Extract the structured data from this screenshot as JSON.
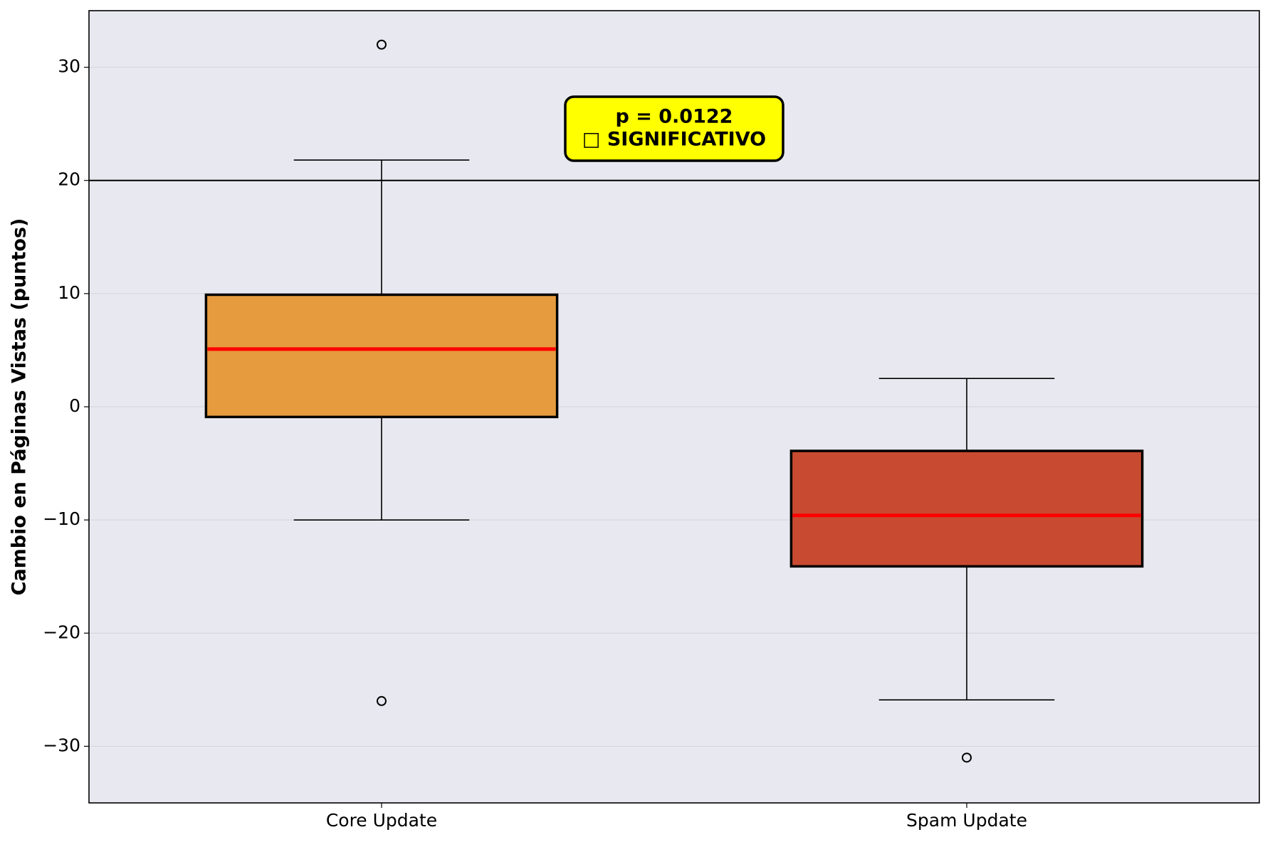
{
  "chart_data": {
    "type": "box",
    "ylabel": "Cambio en Páginas Vistas (puntos)",
    "categories": [
      "Core Update",
      "Spam Update"
    ],
    "colors": [
      "#e69b3e",
      "#c84b31"
    ],
    "median_color": "#ff0000",
    "boxes": [
      {
        "whislo": -10,
        "q1": -0.9,
        "med": 5.1,
        "q3": 9.9,
        "whishi": 21.8,
        "fliers": [
          32,
          -26
        ]
      },
      {
        "whislo": -25.9,
        "q1": -14.1,
        "med": -9.6,
        "q3": -3.9,
        "whishi": 2.5,
        "fliers": [
          -31
        ]
      }
    ],
    "hline": 20,
    "annotation": [
      "p = 0.0122",
      "□ SIGNIFICATIVO"
    ],
    "annotation_color": "#ffff00",
    "ylim": [
      -35,
      35
    ],
    "yticks": [
      {
        "value": -30,
        "label": "−30"
      },
      {
        "value": -20,
        "label": "−20"
      },
      {
        "value": -10,
        "label": "−10"
      },
      0,
      10,
      20,
      30
    ],
    "grid": true
  }
}
